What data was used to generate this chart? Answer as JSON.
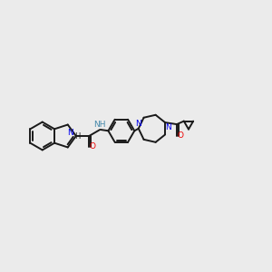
{
  "bg_color": "#ebebeb",
  "bond_color": "#1a1a1a",
  "N_color": "#0000ee",
  "O_color": "#ee0000",
  "NH_color": "#4488aa",
  "lw": 1.4,
  "figsize": [
    3.0,
    3.0
  ],
  "dpi": 100,
  "xlim": [
    0,
    12
  ],
  "ylim": [
    2,
    8
  ]
}
